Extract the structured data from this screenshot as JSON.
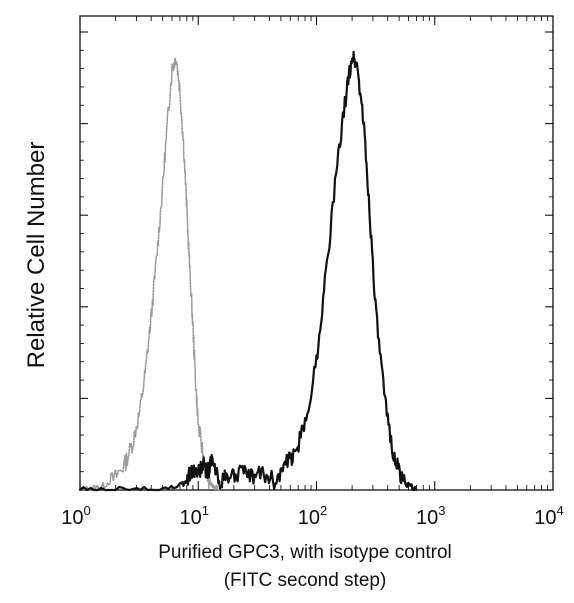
{
  "chart_data": {
    "type": "line",
    "title": "",
    "xlabel_line1": "Purified GPC3, with isotype control",
    "xlabel_line2": "(FITC second step)",
    "ylabel": "Relative Cell Number",
    "x_scale": "log",
    "xlim": [
      1,
      10000
    ],
    "ylim": [
      0,
      100
    ],
    "x_ticks": [
      {
        "base": "10",
        "exp": "0"
      },
      {
        "base": "10",
        "exp": "1"
      },
      {
        "base": "10",
        "exp": "2"
      },
      {
        "base": "10",
        "exp": "3"
      },
      {
        "base": "10",
        "exp": "4"
      }
    ],
    "grid": false,
    "legend": "none",
    "series": [
      {
        "style": "dotted-gray",
        "color": "#9a9a9a",
        "x": [
          1.0,
          1.3,
          1.6,
          2.0,
          2.4,
          2.8,
          3.2,
          3.6,
          4.0,
          4.5,
          5.0,
          5.5,
          6.0,
          6.5,
          7.0,
          7.5,
          8.0,
          8.5,
          9.0,
          9.5,
          10.0,
          11.0,
          12.0,
          13.0,
          15.0
        ],
        "y": [
          0,
          0.5,
          1,
          3,
          6,
          11,
          18,
          28,
          40,
          55,
          70,
          85,
          97,
          100,
          92,
          80,
          65,
          50,
          38,
          25,
          15,
          8,
          3,
          1,
          0
        ]
      },
      {
        "style": "solid-black",
        "color": "#111111",
        "x": [
          1.0,
          2.0,
          4.0,
          7.0,
          8.0,
          9.0,
          10.0,
          11.0,
          12.0,
          13.0,
          15.0,
          18.0,
          22.0,
          28.0,
          35.0,
          45.0,
          55.0,
          65.0,
          80.0,
          100.0,
          120.0,
          150.0,
          180.0,
          200.0,
          220.0,
          250.0,
          280.0,
          320.0,
          380.0,
          450.0,
          520.0,
          600.0,
          700.0
        ],
        "y": [
          0,
          0,
          0,
          1,
          2,
          5,
          4,
          6,
          4,
          7,
          2,
          3,
          4,
          3,
          4,
          2,
          6,
          8,
          15,
          30,
          50,
          75,
          92,
          100,
          98,
          85,
          65,
          40,
          20,
          8,
          3,
          1,
          0
        ]
      }
    ]
  }
}
